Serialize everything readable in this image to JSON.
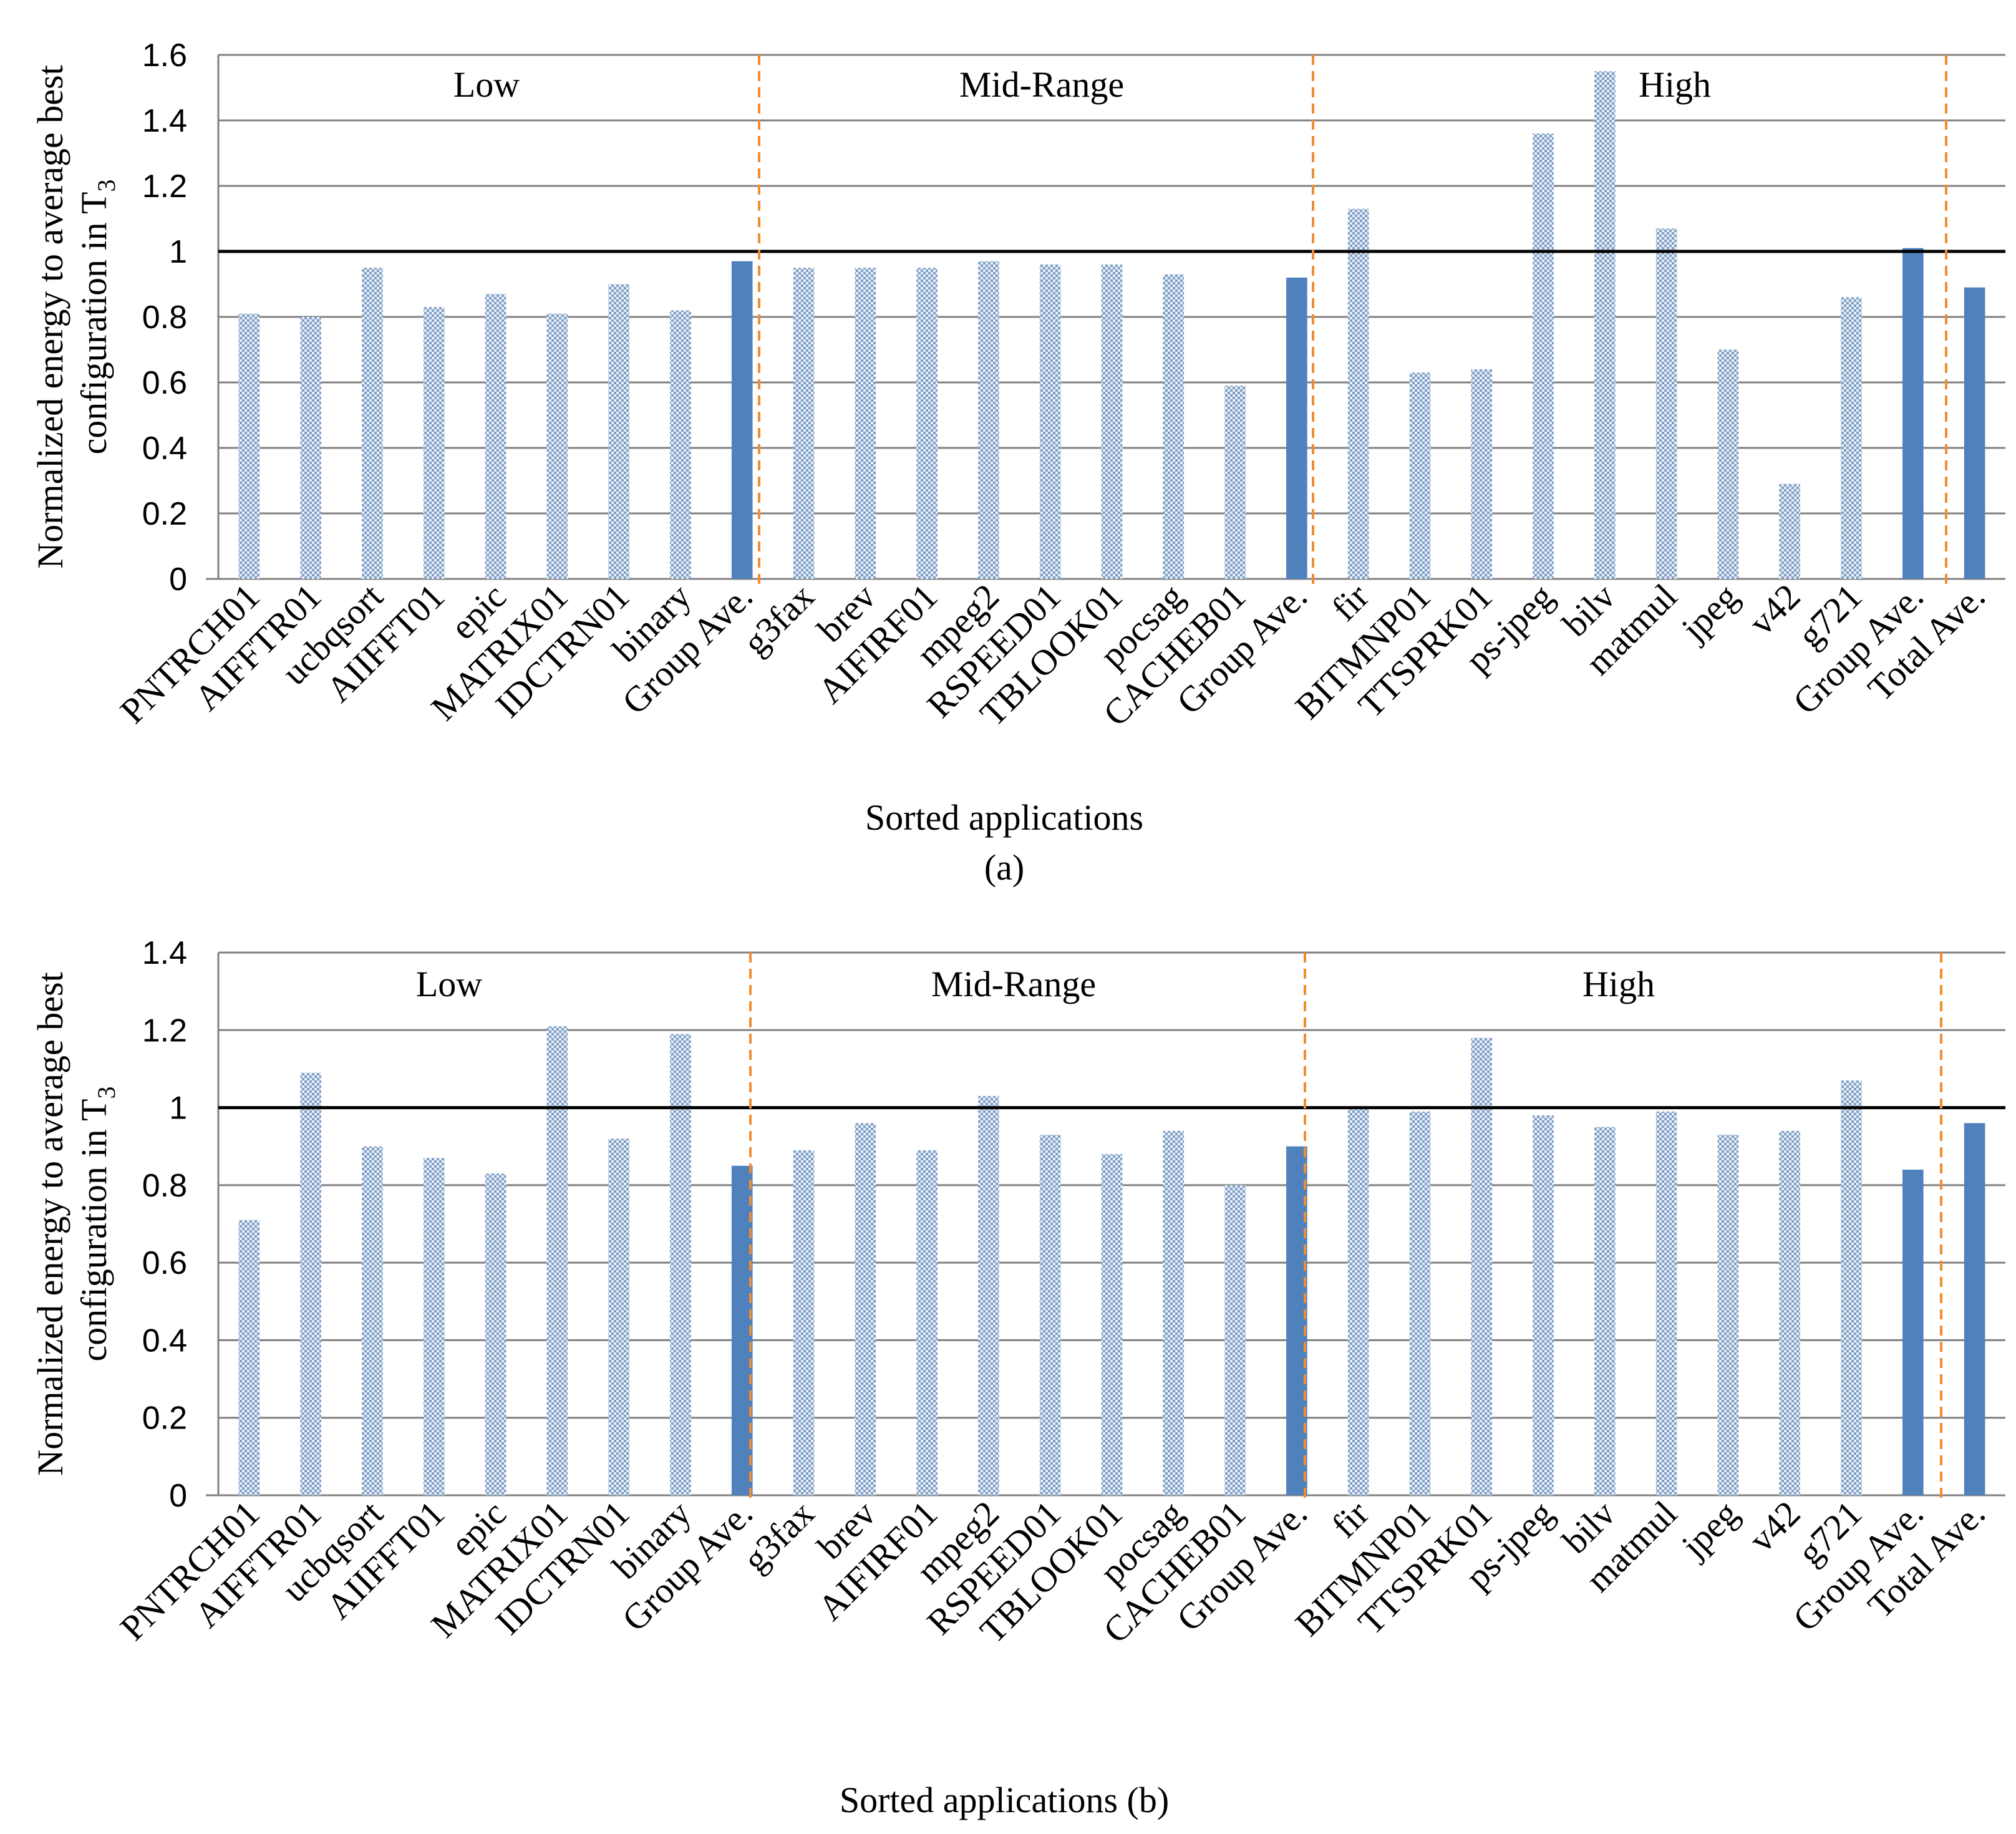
{
  "chart_data": [
    {
      "type": "bar",
      "panel": "a",
      "xlabel": "Sorted applications",
      "caption": "(a)",
      "ylabel_line1": "Normalized energy to average best",
      "ylabel_line2": "configuration in T",
      "ylabel_sub": "3",
      "ylim": [
        0,
        1.6
      ],
      "ytick_step": 0.2,
      "yticks": [
        "0",
        "0.2",
        "0.4",
        "0.6",
        "0.8",
        "1",
        "1.2",
        "1.4",
        "1.6"
      ],
      "reference_line": 1,
      "groups": [
        {
          "label": "Low",
          "start": 0,
          "end": 8
        },
        {
          "label": "Mid-Range",
          "start": 9,
          "end": 17
        },
        {
          "label": "High",
          "start": 18,
          "end": 27
        }
      ],
      "categories": [
        "PNTRCH01",
        "AIFFTR01",
        "ucbqsort",
        "AIIFFT01",
        "epic",
        "MATRIX01",
        "IDCTRN01",
        "binary",
        "Group Ave.",
        "g3fax",
        "brev",
        "AIFIRF01",
        "mpeg2",
        "RSPEED01",
        "TBLOOK01",
        "pocsag",
        "CACHEB01",
        "Group Ave.",
        "fir",
        "BITMNP01",
        "TTSPRK01",
        "ps-jpeg",
        "bilv",
        "matmul",
        "jpeg",
        "v42",
        "g721",
        "Group Ave.",
        "Total Ave."
      ],
      "values": [
        0.81,
        0.8,
        0.95,
        0.83,
        0.87,
        0.81,
        0.9,
        0.82,
        0.97,
        0.95,
        0.95,
        0.95,
        0.97,
        0.96,
        0.96,
        0.93,
        0.59,
        0.92,
        1.13,
        0.63,
        0.64,
        1.36,
        1.55,
        1.07,
        0.7,
        0.29,
        0.86,
        1.01,
        0.89
      ],
      "is_average": [
        false,
        false,
        false,
        false,
        false,
        false,
        false,
        false,
        true,
        false,
        false,
        false,
        false,
        false,
        false,
        false,
        false,
        true,
        false,
        false,
        false,
        false,
        false,
        false,
        false,
        false,
        false,
        true,
        true
      ]
    },
    {
      "type": "bar",
      "panel": "b",
      "xlabel": "Sorted applications (b)",
      "caption": "",
      "ylabel_line1": "Normalized energy to average best",
      "ylabel_line2": "configuration in T",
      "ylabel_sub": "3",
      "ylim": [
        0,
        1.4
      ],
      "ytick_step": 0.2,
      "yticks": [
        "0",
        "0.2",
        "0.4",
        "0.6",
        "0.8",
        "1",
        "1.2",
        "1.4"
      ],
      "reference_line": 1,
      "groups": [
        {
          "label": "Low",
          "start": 0,
          "end": 8
        },
        {
          "label": "Mid-Range",
          "start": 9,
          "end": 17
        },
        {
          "label": "High",
          "start": 18,
          "end": 27
        }
      ],
      "categories": [
        "PNTRCH01",
        "AIFFTR01",
        "ucbqsort",
        "AIIFFT01",
        "epic",
        "MATRIX01",
        "IDCTRN01",
        "binary",
        "Group Ave.",
        "g3fax",
        "brev",
        "AIFIRF01",
        "mpeg2",
        "RSPEED01",
        "TBLOOK01",
        "pocsag",
        "CACHEB01",
        "Group Ave.",
        "fir",
        "BITMNP01",
        "TTSPRK01",
        "ps-jpeg",
        "bilv",
        "matmul",
        "jpeg",
        "v42",
        "g721",
        "Group Ave.",
        "Total Ave."
      ],
      "values": [
        0.71,
        1.09,
        0.9,
        0.87,
        0.83,
        1.21,
        0.92,
        1.19,
        0.85,
        0.89,
        0.96,
        0.89,
        1.03,
        0.93,
        0.88,
        0.94,
        0.8,
        0.9,
        1.0,
        0.99,
        1.18,
        0.98,
        0.95,
        0.99,
        0.93,
        0.94,
        1.07,
        0.84,
        0.96
      ],
      "is_average": [
        false,
        false,
        false,
        false,
        false,
        false,
        false,
        false,
        true,
        false,
        false,
        false,
        false,
        false,
        false,
        false,
        false,
        true,
        false,
        false,
        false,
        false,
        false,
        false,
        false,
        false,
        false,
        true,
        true
      ]
    }
  ],
  "colors": {
    "bar": "#a6bddb",
    "bar_dot": "#ffffff",
    "avg": "#4f81bd",
    "grid": "#808080",
    "axis": "#808080",
    "reference": "#000000",
    "divider": "#f08c32"
  }
}
